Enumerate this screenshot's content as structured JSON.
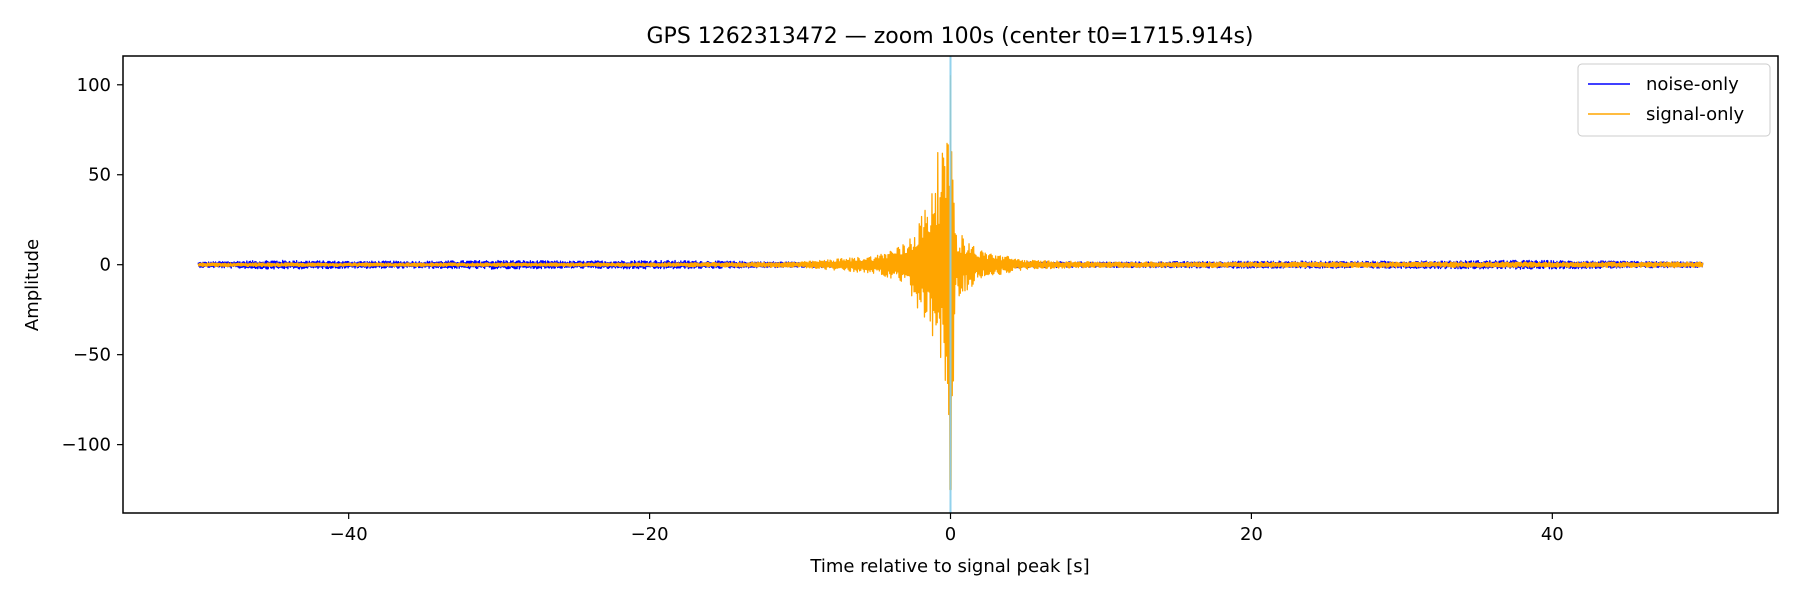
{
  "chart_data": {
    "type": "line",
    "title": "GPS 1262313472 — zoom 100s (center t0=1715.914s)",
    "xlabel": "Time relative to signal peak [s]",
    "ylabel": "Amplitude",
    "xlim": [
      -55,
      55
    ],
    "ylim": [
      -138,
      116
    ],
    "xticks": [
      -40,
      -20,
      0,
      20,
      40
    ],
    "xtick_labels": [
      "−40",
      "−20",
      "0",
      "20",
      "40"
    ],
    "yticks": [
      -100,
      -50,
      0,
      50,
      100
    ],
    "ytick_labels": [
      "−100",
      "−50",
      "0",
      "50",
      "100"
    ],
    "grid": false,
    "legend": "top-right",
    "marker_line": {
      "x": 0,
      "color": "#87ceeb"
    },
    "series": [
      {
        "name": "noise-only",
        "color": "#0000ff",
        "x_range": [
          -50,
          50
        ],
        "envelope_points": [
          {
            "t": -50,
            "amp": 1.5
          },
          {
            "t": -45,
            "amp": 2.5
          },
          {
            "t": -40,
            "amp": 2.0
          },
          {
            "t": -35,
            "amp": 2.0
          },
          {
            "t": -30,
            "amp": 2.5
          },
          {
            "t": -25,
            "amp": 2.0
          },
          {
            "t": -20,
            "amp": 2.5
          },
          {
            "t": -10,
            "amp": 1.5
          },
          {
            "t": 0,
            "amp": 2.0
          },
          {
            "t": 10,
            "amp": 1.5
          },
          {
            "t": 20,
            "amp": 2.0
          },
          {
            "t": 30,
            "amp": 2.0
          },
          {
            "t": 38,
            "amp": 2.5
          },
          {
            "t": 50,
            "amp": 1.5
          }
        ]
      },
      {
        "name": "signal-only",
        "color": "#ffa500",
        "x_range": [
          -50,
          50
        ],
        "envelope_points": [
          {
            "t": -50,
            "amp": 1.0
          },
          {
            "t": -20,
            "amp": 1.0
          },
          {
            "t": -10,
            "amp": 1.5
          },
          {
            "t": -5,
            "amp": 5
          },
          {
            "t": -3,
            "amp": 12
          },
          {
            "t": -1.5,
            "amp": 35
          },
          {
            "t": -1,
            "amp": 60
          },
          {
            "t": -0.5,
            "amp": 68
          },
          {
            "t": -0.2,
            "amp": 68
          },
          {
            "t": 0,
            "amp": 105
          },
          {
            "t": 0.05,
            "amp": 125
          },
          {
            "t": 0.3,
            "amp": 20
          },
          {
            "t": 1,
            "amp": 15
          },
          {
            "t": 2,
            "amp": 8
          },
          {
            "t": 5,
            "amp": 2.5
          },
          {
            "t": 10,
            "amp": 1.5
          },
          {
            "t": 50,
            "amp": 1.5
          }
        ]
      }
    ]
  }
}
